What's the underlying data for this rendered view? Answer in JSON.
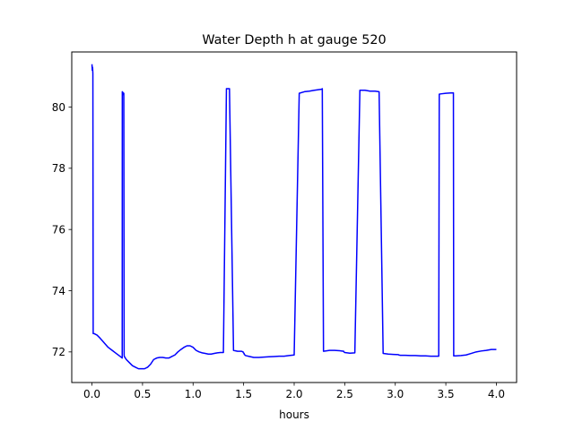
{
  "chart_data": {
    "type": "line",
    "title": "Water Depth h at gauge 520",
    "xlabel": "hours",
    "ylabel": "",
    "xlim": [
      -0.2,
      4.2
    ],
    "ylim": [
      71.0,
      81.8
    ],
    "xticks": [
      0.0,
      0.5,
      1.0,
      1.5,
      2.0,
      2.5,
      3.0,
      3.5,
      4.0
    ],
    "xtick_labels": [
      "0.0",
      "0.5",
      "1.0",
      "1.5",
      "2.0",
      "2.5",
      "3.0",
      "3.5",
      "4.0"
    ],
    "yticks": [
      72,
      74,
      76,
      78,
      80
    ],
    "ytick_labels": [
      "72",
      "74",
      "76",
      "78",
      "80"
    ],
    "grid": false,
    "legend": "none",
    "series": [
      {
        "color": "#0000ff",
        "x": [
          0.0,
          0.003,
          0.006,
          0.009,
          0.012,
          0.02,
          0.05,
          0.08,
          0.12,
          0.16,
          0.2,
          0.24,
          0.28,
          0.299,
          0.3,
          0.305,
          0.31,
          0.311,
          0.315,
          0.318,
          0.32,
          0.34,
          0.37,
          0.4,
          0.43,
          0.46,
          0.49,
          0.52,
          0.55,
          0.58,
          0.61,
          0.64,
          0.67,
          0.7,
          0.73,
          0.76,
          0.79,
          0.82,
          0.85,
          0.88,
          0.91,
          0.94,
          0.97,
          1.0,
          1.03,
          1.06,
          1.09,
          1.12,
          1.15,
          1.18,
          1.21,
          1.24,
          1.27,
          1.3,
          1.33,
          1.36,
          1.4,
          1.44,
          1.48,
          1.495,
          1.496,
          1.505,
          1.506,
          1.52,
          1.56,
          1.6,
          1.65,
          1.7,
          1.75,
          1.8,
          1.85,
          1.9,
          1.95,
          2.0,
          2.05,
          2.1,
          2.15,
          2.2,
          2.27,
          2.278,
          2.29,
          2.35,
          2.4,
          2.45,
          2.49,
          2.492,
          2.5,
          2.55,
          2.6,
          2.65,
          2.7,
          2.75,
          2.8,
          2.838,
          2.84,
          2.88,
          2.93,
          2.98,
          3.03,
          3.035,
          3.05,
          3.1,
          3.15,
          3.2,
          3.25,
          3.3,
          3.35,
          3.4,
          3.43,
          3.435,
          3.45,
          3.5,
          3.55,
          3.575,
          3.578,
          3.6,
          3.65,
          3.7,
          3.75,
          3.8,
          3.85,
          3.9,
          3.95,
          4.0
        ],
        "y": [
          81.4,
          81.2,
          81.3,
          81.1,
          72.6,
          72.6,
          72.55,
          72.45,
          72.3,
          72.15,
          72.05,
          71.95,
          71.85,
          71.8,
          80.5,
          80.48,
          80.45,
          80.4,
          80.45,
          71.9,
          71.85,
          71.75,
          71.65,
          71.55,
          71.5,
          71.45,
          71.45,
          71.45,
          71.5,
          71.6,
          71.75,
          71.8,
          71.82,
          71.82,
          71.8,
          71.8,
          71.85,
          71.9,
          72.0,
          72.08,
          72.15,
          72.2,
          72.2,
          72.15,
          72.05,
          72.0,
          71.97,
          71.95,
          71.93,
          71.93,
          71.95,
          71.97,
          71.98,
          71.98,
          80.6,
          80.6,
          72.05,
          72.02,
          72.02,
          72.0,
          71.98,
          71.95,
          71.92,
          71.88,
          71.85,
          71.82,
          71.82,
          71.83,
          71.84,
          71.85,
          71.86,
          71.86,
          71.88,
          71.9,
          80.45,
          80.5,
          80.52,
          80.55,
          80.58,
          80.6,
          72.02,
          72.05,
          72.05,
          72.04,
          72.02,
          72.0,
          71.98,
          71.96,
          71.97,
          80.55,
          80.55,
          80.52,
          80.52,
          80.5,
          80.5,
          71.95,
          71.93,
          71.92,
          71.91,
          71.9,
          71.89,
          71.89,
          71.88,
          71.88,
          71.87,
          71.87,
          71.86,
          71.86,
          71.86,
          80.42,
          80.43,
          80.45,
          80.46,
          80.46,
          71.87,
          71.87,
          71.88,
          71.9,
          71.95,
          72.0,
          72.03,
          72.05,
          72.08,
          72.08
        ]
      }
    ]
  }
}
